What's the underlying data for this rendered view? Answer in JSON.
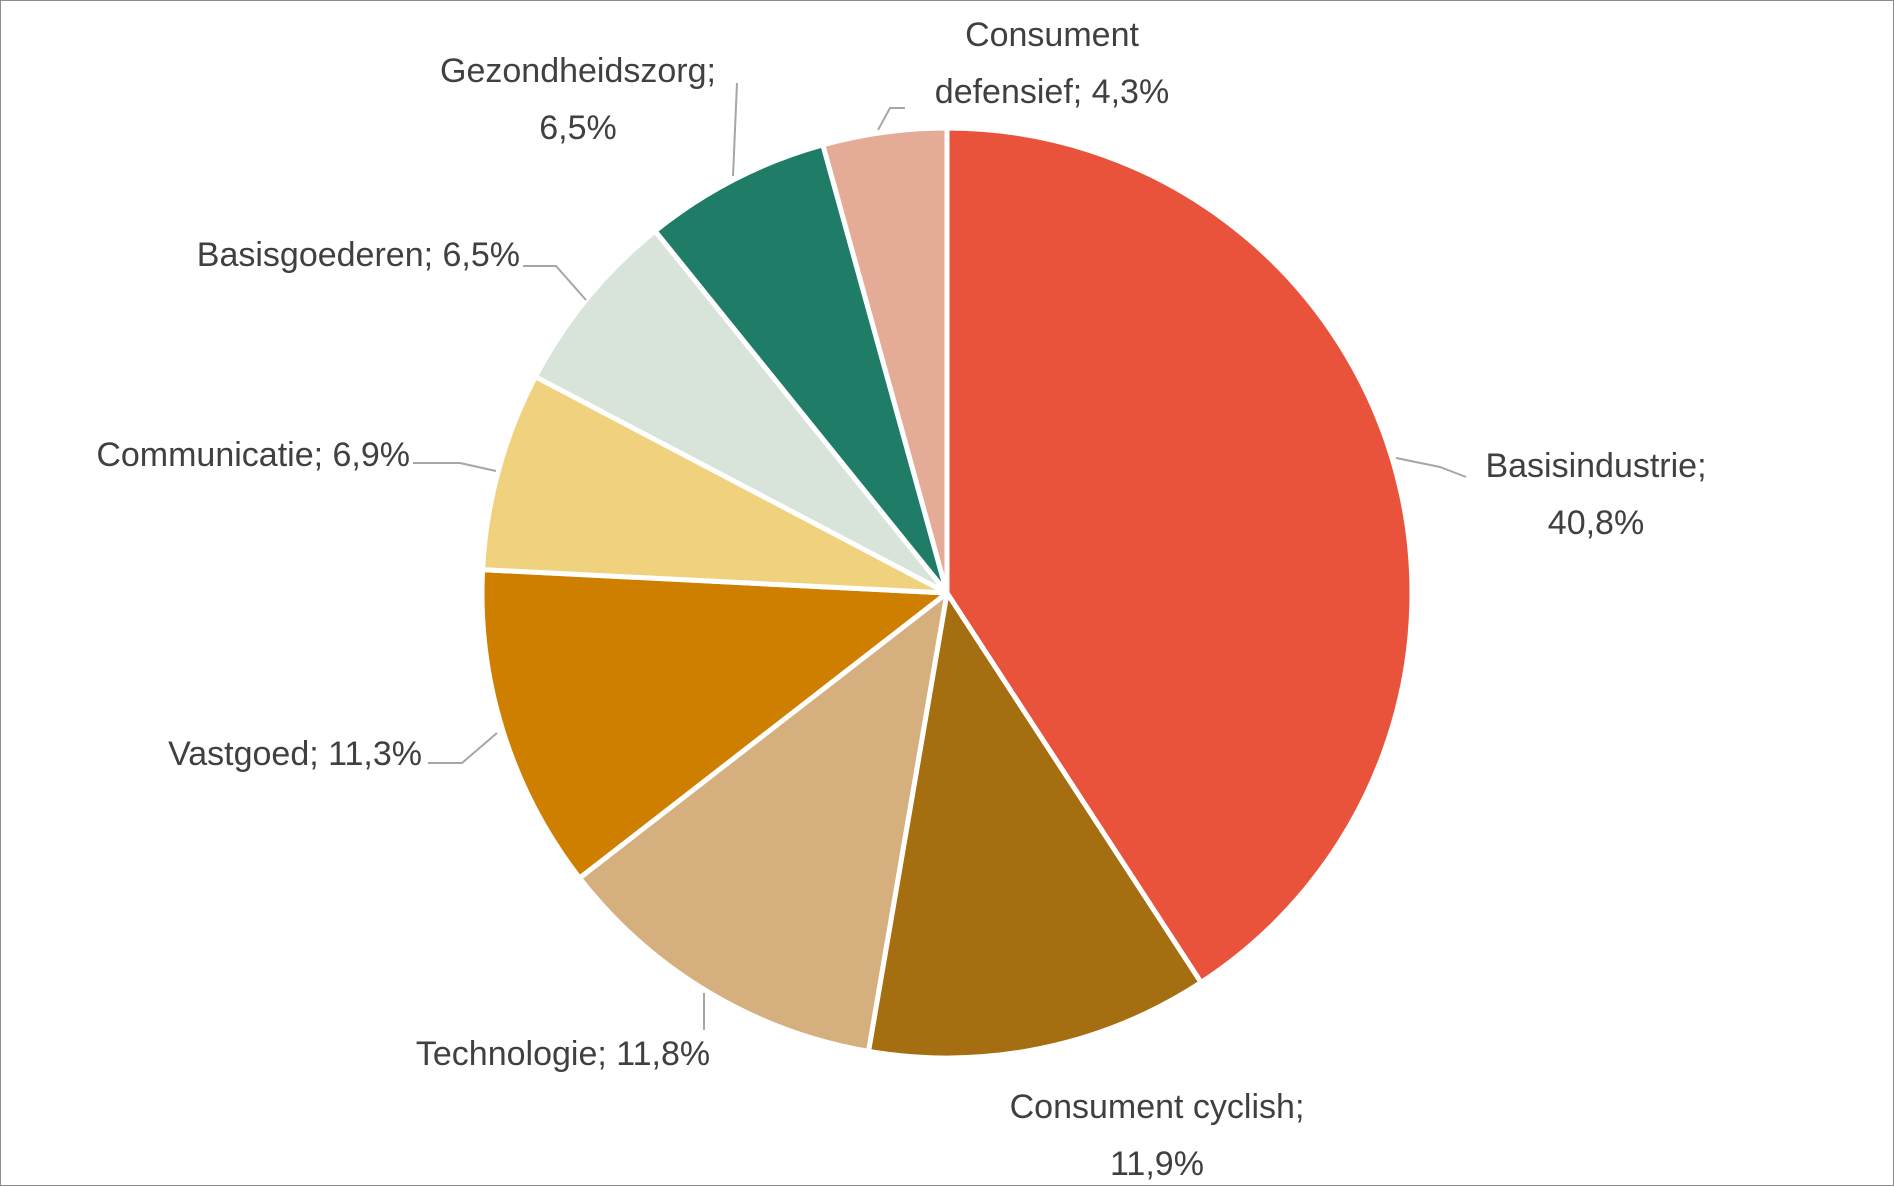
{
  "chart_data": {
    "type": "pie",
    "title": "",
    "start_angle_deg": 0,
    "direction": "clockwise",
    "slices": [
      {
        "name": "Basisindustrie",
        "value": 40.8,
        "label_lines": [
          "Basisindustrie;",
          "40,8%"
        ],
        "color": "#E9533C"
      },
      {
        "name": "Consument cyclish",
        "value": 11.9,
        "label_lines": [
          "Consument cyclish;",
          "11,9%"
        ],
        "color": "#A46E11"
      },
      {
        "name": "Technologie",
        "value": 11.8,
        "label_lines": [
          "Technologie; 11,8%"
        ],
        "color": "#D5AF7E"
      },
      {
        "name": "Vastgoed",
        "value": 11.3,
        "label_lines": [
          "Vastgoed; 11,3%"
        ],
        "color": "#CE7F00"
      },
      {
        "name": "Communicatie",
        "value": 6.9,
        "label_lines": [
          "Communicatie; 6,9%"
        ],
        "color": "#F0D27E"
      },
      {
        "name": "Basisgoederen",
        "value": 6.5,
        "label_lines": [
          "Basisgoederen; 6,5%"
        ],
        "color": "#D8E3D9"
      },
      {
        "name": "Gezondheidszorg",
        "value": 6.5,
        "label_lines": [
          "Gezondheidszorg;",
          "6,5%"
        ],
        "color": "#1F7D67"
      },
      {
        "name": "Consument defensief",
        "value": 4.3,
        "label_lines": [
          "Consument",
          "defensief; 4,3%"
        ],
        "color": "#E4AC97"
      }
    ]
  }
}
